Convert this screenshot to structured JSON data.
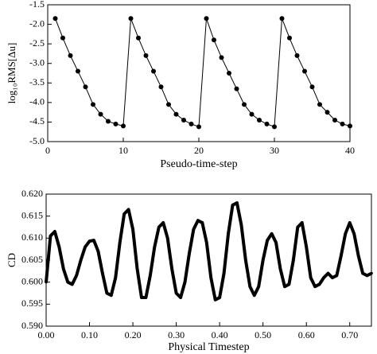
{
  "chart_data": [
    {
      "type": "line",
      "xlabel": "Pseudo-time-step",
      "ylabel": "log₁₀RMS[Δu]",
      "color": "#000000",
      "markers": true,
      "x": [
        1,
        2,
        3,
        4,
        5,
        6,
        7,
        8,
        9,
        10,
        11,
        12,
        13,
        14,
        15,
        16,
        17,
        18,
        19,
        20,
        21,
        22,
        23,
        24,
        25,
        26,
        27,
        28,
        29,
        30,
        31,
        32,
        33,
        34,
        35,
        36,
        37,
        38,
        39,
        40
      ],
      "values": [
        -1.85,
        -2.35,
        -2.8,
        -3.2,
        -3.6,
        -4.05,
        -4.3,
        -4.48,
        -4.55,
        -4.6,
        -1.85,
        -2.35,
        -2.8,
        -3.2,
        -3.6,
        -4.05,
        -4.3,
        -4.45,
        -4.55,
        -4.62,
        -1.85,
        -2.4,
        -2.85,
        -3.25,
        -3.65,
        -4.05,
        -4.3,
        -4.45,
        -4.55,
        -4.62,
        -1.85,
        -2.35,
        -2.8,
        -3.2,
        -3.6,
        -4.05,
        -4.25,
        -4.45,
        -4.55,
        -4.6
      ],
      "xlim": [
        0,
        40
      ],
      "xticks": [
        0,
        10,
        20,
        30,
        40
      ],
      "ylim": [
        -5,
        -1.5
      ],
      "yticks": [
        {
          "value": -1.5,
          "label": "-1.5"
        },
        {
          "value": -2,
          "label": "-2.0"
        },
        {
          "value": -2.5,
          "label": "-2.5"
        },
        {
          "value": -3,
          "label": "-3.0"
        },
        {
          "value": -3.5,
          "label": "-3.5"
        },
        {
          "value": -4,
          "label": "-4.0"
        },
        {
          "value": -4.5,
          "label": "-4.5"
        },
        {
          "value": -5,
          "label": "-5.0"
        }
      ]
    },
    {
      "type": "line",
      "xlabel": "Physical Timestep",
      "ylabel": "CD",
      "color": "#000000",
      "markers": true,
      "x": [
        0,
        0.01,
        0.02,
        0.03,
        0.04,
        0.05,
        0.06,
        0.07,
        0.08,
        0.09,
        0.1,
        0.11,
        0.12,
        0.13,
        0.14,
        0.15,
        0.16,
        0.17,
        0.18,
        0.19,
        0.2,
        0.21,
        0.22,
        0.23,
        0.24,
        0.25,
        0.26,
        0.27,
        0.28,
        0.29,
        0.3,
        0.31,
        0.32,
        0.33,
        0.34,
        0.35,
        0.36,
        0.37,
        0.38,
        0.39,
        0.4,
        0.41,
        0.42,
        0.43,
        0.44,
        0.45,
        0.46,
        0.47,
        0.48,
        0.49,
        0.5,
        0.51,
        0.52,
        0.53,
        0.54,
        0.55,
        0.56,
        0.57,
        0.58,
        0.59,
        0.6,
        0.61,
        0.62,
        0.63,
        0.64,
        0.65,
        0.66,
        0.67,
        0.68,
        0.69,
        0.7,
        0.71,
        0.72,
        0.73,
        0.74,
        0.75
      ],
      "values": [
        0.6,
        0.6105,
        0.6115,
        0.608,
        0.603,
        0.6,
        0.5995,
        0.6015,
        0.605,
        0.608,
        0.6093,
        0.6095,
        0.607,
        0.602,
        0.5975,
        0.597,
        0.601,
        0.609,
        0.6155,
        0.6165,
        0.612,
        0.603,
        0.5965,
        0.5965,
        0.6015,
        0.608,
        0.6125,
        0.6135,
        0.61,
        0.603,
        0.5975,
        0.5965,
        0.6,
        0.6065,
        0.612,
        0.614,
        0.6135,
        0.609,
        0.601,
        0.596,
        0.5965,
        0.602,
        0.611,
        0.6175,
        0.618,
        0.613,
        0.605,
        0.599,
        0.597,
        0.599,
        0.605,
        0.6095,
        0.611,
        0.609,
        0.603,
        0.599,
        0.5995,
        0.605,
        0.6125,
        0.6135,
        0.608,
        0.601,
        0.599,
        0.5995,
        0.601,
        0.602,
        0.601,
        0.6015,
        0.606,
        0.611,
        0.6135,
        0.611,
        0.606,
        0.602,
        0.6015,
        0.602
      ],
      "xlim": [
        0,
        0.75
      ],
      "xticks": [
        {
          "value": 0,
          "label": "0.00"
        },
        {
          "value": 0.1,
          "label": "0.10"
        },
        {
          "value": 0.2,
          "label": "0.20"
        },
        {
          "value": 0.3,
          "label": "0.30"
        },
        {
          "value": 0.4,
          "label": "0.40"
        },
        {
          "value": 0.5,
          "label": "0.50"
        },
        {
          "value": 0.6,
          "label": "0.60"
        },
        {
          "value": 0.7,
          "label": "0.70"
        }
      ],
      "ylim": [
        0.59,
        0.62
      ],
      "yticks": [
        {
          "value": 0.59,
          "label": "0.590"
        },
        {
          "value": 0.595,
          "label": "0.595"
        },
        {
          "value": 0.6,
          "label": "0.600"
        },
        {
          "value": 0.605,
          "label": "0.605"
        },
        {
          "value": 0.61,
          "label": "0.610"
        },
        {
          "value": 0.615,
          "label": "0.615"
        },
        {
          "value": 0.62,
          "label": "0.620"
        }
      ]
    }
  ]
}
